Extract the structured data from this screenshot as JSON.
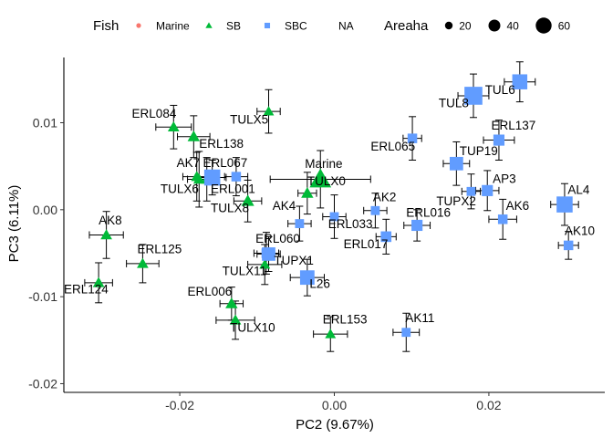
{
  "chart_data": {
    "type": "scatter",
    "xlabel": "PC2 (9.67%)",
    "ylabel": "PC3 (6.11%)",
    "xlim": [
      -0.035,
      0.035
    ],
    "ylim": [
      -0.021,
      0.0175
    ],
    "xticks": [
      -0.02,
      0.0,
      0.02
    ],
    "xtick_labels": [
      "-0.02",
      "0.00",
      "0.02"
    ],
    "yticks": [
      -0.02,
      -0.01,
      0.0,
      0.01
    ],
    "ytick_labels": [
      "-0.02",
      "-0.01",
      "0.00",
      "0.01"
    ],
    "grid": false,
    "legend_position": "top",
    "legend": {
      "fish_title": "Fish",
      "fish_items": [
        {
          "label": "Marine",
          "shape": "circle",
          "color": "#F8766D"
        },
        {
          "label": "SB",
          "shape": "triangle",
          "color": "#00BA38"
        },
        {
          "label": "SBC",
          "shape": "square",
          "color": "#619CFF"
        },
        {
          "label": "NA",
          "shape": "none",
          "color": "#7F7F7F"
        }
      ],
      "size_title": "Areaha",
      "size_items": [
        {
          "label": "20",
          "value": 20
        },
        {
          "label": "40",
          "value": 40
        },
        {
          "label": "60",
          "value": 60
        }
      ]
    },
    "points": [
      {
        "label": "Marine",
        "group": "SB",
        "x": -0.0018,
        "y": 0.0035,
        "xerr": 0.0065,
        "yerr": 0.0033,
        "size": 60,
        "lx": -0.0038,
        "ly": 0.0048
      },
      {
        "label": "AK8",
        "group": "SB",
        "x": -0.0295,
        "y": -0.0029,
        "xerr": 0.0022,
        "yerr": 0.0027,
        "size": 10,
        "lx": -0.0305,
        "ly": -0.0017
      },
      {
        "label": "ERL125",
        "group": "SB",
        "x": -0.0248,
        "y": -0.0062,
        "xerr": 0.0021,
        "yerr": 0.0022,
        "size": 10,
        "lx": -0.0255,
        "ly": -0.005
      },
      {
        "label": "ERL124",
        "group": "SB",
        "x": -0.0305,
        "y": -0.0084,
        "xerr": 0.0018,
        "yerr": 0.0023,
        "size": 10,
        "lx": -0.035,
        "ly": -0.0096
      },
      {
        "label": "ERL084",
        "group": "SB",
        "x": -0.0208,
        "y": 0.0095,
        "xerr": 0.0023,
        "yerr": 0.0025,
        "size": 10,
        "lx": -0.0262,
        "ly": 0.0106
      },
      {
        "label": "ERL138",
        "group": "SB",
        "x": -0.0182,
        "y": 0.0084,
        "xerr": 0.0021,
        "yerr": 0.0024,
        "size": 12,
        "lx": -0.0175,
        "ly": 0.0071
      },
      {
        "label": "AK7",
        "group": "SB",
        "x": -0.0178,
        "y": 0.0038,
        "xerr": 0.0018,
        "yerr": 0.0028,
        "size": 10,
        "lx": -0.0204,
        "ly": 0.0049
      },
      {
        "label": "TULX6",
        "group": "SB",
        "x": -0.0175,
        "y": 0.0035,
        "xerr": 0.0015,
        "yerr": 0.0032,
        "size": 10,
        "lx": -0.0225,
        "ly": 0.0019
      },
      {
        "label": "ERL001",
        "group": "SB",
        "x": -0.0165,
        "y": 0.0035,
        "xerr": 0.0015,
        "yerr": 0.0025,
        "size": 10,
        "lx": -0.016,
        "ly": 0.0019
      },
      {
        "label": "TULX8",
        "group": "SB",
        "x": -0.0112,
        "y": 0.001,
        "xerr": 0.0018,
        "yerr": 0.0024,
        "size": 14,
        "lx": -0.016,
        "ly": -0.0003
      },
      {
        "label": "TULX5",
        "group": "SB",
        "x": -0.0085,
        "y": 0.0113,
        "xerr": 0.0015,
        "yerr": 0.0025,
        "size": 8,
        "lx": -0.0135,
        "ly": 0.0099
      },
      {
        "label": "TULX11",
        "group": "SB",
        "x": -0.009,
        "y": -0.0063,
        "xerr": 0.0022,
        "yerr": 0.0023,
        "size": 8,
        "lx": -0.0145,
        "ly": -0.0075
      },
      {
        "label": "ERL006",
        "group": "SB",
        "x": -0.0133,
        "y": -0.0108,
        "xerr": 0.0015,
        "yerr": 0.0019,
        "size": 12,
        "lx": -0.019,
        "ly": -0.0099
      },
      {
        "label": "TULX10",
        "group": "SB",
        "x": -0.0128,
        "y": -0.0127,
        "xerr": 0.0025,
        "yerr": 0.0022,
        "size": 10,
        "lx": -0.0135,
        "ly": -0.014
      },
      {
        "label": "TULX0",
        "group": "SB",
        "x": -0.0035,
        "y": 0.0019,
        "xerr": 0.0012,
        "yerr": 0.0024,
        "size": 12,
        "lx": -0.0035,
        "ly": 0.0028
      },
      {
        "label": "ERL153",
        "group": "SB",
        "x": -0.0005,
        "y": -0.0143,
        "xerr": 0.0022,
        "yerr": 0.002,
        "size": 8,
        "lx": -0.0015,
        "ly": -0.0131
      },
      {
        "label": "ERL067",
        "group": "SBC",
        "x": -0.0127,
        "y": 0.0038,
        "xerr": 0.0015,
        "yerr": 0.0022,
        "size": 10,
        "lx": -0.017,
        "ly": 0.0049
      },
      {
        "label": "",
        "group": "SBC",
        "x": -0.0158,
        "y": 0.0037,
        "xerr": 0.0018,
        "yerr": 0.002,
        "size": 45,
        "lx": 0,
        "ly": 0
      },
      {
        "label": "ERL060",
        "group": "SBC",
        "x": -0.0088,
        "y": -0.005,
        "xerr": 0.0016,
        "yerr": 0.0024,
        "size": 10,
        "lx": -0.0102,
        "ly": -0.0038
      },
      {
        "label": "TUPX1",
        "group": "SBC",
        "x": -0.0085,
        "y": -0.0051,
        "xerr": 0.0015,
        "yerr": 0.002,
        "size": 28,
        "lx": -0.0078,
        "ly": -0.0063
      },
      {
        "label": "L26",
        "group": "SBC",
        "x": -0.0035,
        "y": -0.0078,
        "xerr": 0.0022,
        "yerr": 0.0021,
        "size": 34,
        "lx": -0.0032,
        "ly": -0.009
      },
      {
        "label": "AK4",
        "group": "SBC",
        "x": -0.0045,
        "y": -0.0016,
        "xerr": 0.0015,
        "yerr": 0.002,
        "size": 8,
        "lx": -0.008,
        "ly": 0.0
      },
      {
        "label": "ERL033",
        "group": "SBC",
        "x": 0.0,
        "y": -0.0008,
        "xerr": 0.0015,
        "yerr": 0.0025,
        "size": 8,
        "lx": -0.0008,
        "ly": -0.0021
      },
      {
        "label": "AK2",
        "group": "SBC",
        "x": 0.0053,
        "y": -0.0001,
        "xerr": 0.0015,
        "yerr": 0.002,
        "size": 8,
        "lx": 0.005,
        "ly": 0.001
      },
      {
        "label": "ERL017",
        "group": "SBC",
        "x": 0.0067,
        "y": -0.0031,
        "xerr": 0.0013,
        "yerr": 0.002,
        "size": 14,
        "lx": 0.0012,
        "ly": -0.0044
      },
      {
        "label": "ERL016",
        "group": "SBC",
        "x": 0.0107,
        "y": -0.0018,
        "xerr": 0.0017,
        "yerr": 0.0018,
        "size": 16,
        "lx": 0.0093,
        "ly": -0.0008
      },
      {
        "label": "ERL065",
        "group": "SBC",
        "x": 0.0101,
        "y": 0.0082,
        "xerr": 0.0012,
        "yerr": 0.0025,
        "size": 10,
        "lx": 0.0047,
        "ly": 0.0068
      },
      {
        "label": "AK11",
        "group": "SBC",
        "x": 0.0093,
        "y": -0.0141,
        "xerr": 0.0017,
        "yerr": 0.0022,
        "size": 8,
        "lx": 0.0092,
        "ly": -0.0129
      },
      {
        "label": "TUP19",
        "group": "SBC",
        "x": 0.0158,
        "y": 0.0053,
        "xerr": 0.0017,
        "yerr": 0.0025,
        "size": 28,
        "lx": 0.0162,
        "ly": 0.0063
      },
      {
        "label": "TUPX2",
        "group": "SBC",
        "x": 0.0177,
        "y": 0.0021,
        "xerr": 0.0012,
        "yerr": 0.002,
        "size": 8,
        "lx": 0.0132,
        "ly": 0.0005
      },
      {
        "label": "AP3",
        "group": "SBC",
        "x": 0.0198,
        "y": 0.0022,
        "xerr": 0.0015,
        "yerr": 0.0023,
        "size": 16,
        "lx": 0.0205,
        "ly": 0.0031
      },
      {
        "label": "AK6",
        "group": "SBC",
        "x": 0.0218,
        "y": -0.0011,
        "xerr": 0.0018,
        "yerr": 0.0023,
        "size": 10,
        "lx": 0.0222,
        "ly": 0.0
      },
      {
        "label": "ERL137",
        "group": "SBC",
        "x": 0.0213,
        "y": 0.008,
        "xerr": 0.002,
        "yerr": 0.0023,
        "size": 16,
        "lx": 0.0203,
        "ly": 0.0092
      },
      {
        "label": "TUL8",
        "group": "SBC",
        "x": 0.018,
        "y": 0.0131,
        "xerr": 0.002,
        "yerr": 0.0025,
        "size": 60,
        "lx": 0.0135,
        "ly": 0.0118
      },
      {
        "label": "TUL6",
        "group": "SBC",
        "x": 0.024,
        "y": 0.0147,
        "xerr": 0.002,
        "yerr": 0.0023,
        "size": 38,
        "lx": 0.0195,
        "ly": 0.0133
      },
      {
        "label": "AL4",
        "group": "SBC",
        "x": 0.0298,
        "y": 0.0006,
        "xerr": 0.0018,
        "yerr": 0.0024,
        "size": 45,
        "lx": 0.0302,
        "ly": 0.0018
      },
      {
        "label": "AK10",
        "group": "SBC",
        "x": 0.0303,
        "y": -0.0041,
        "xerr": 0.0013,
        "yerr": 0.0016,
        "size": 10,
        "lx": 0.0298,
        "ly": -0.0029
      }
    ]
  }
}
